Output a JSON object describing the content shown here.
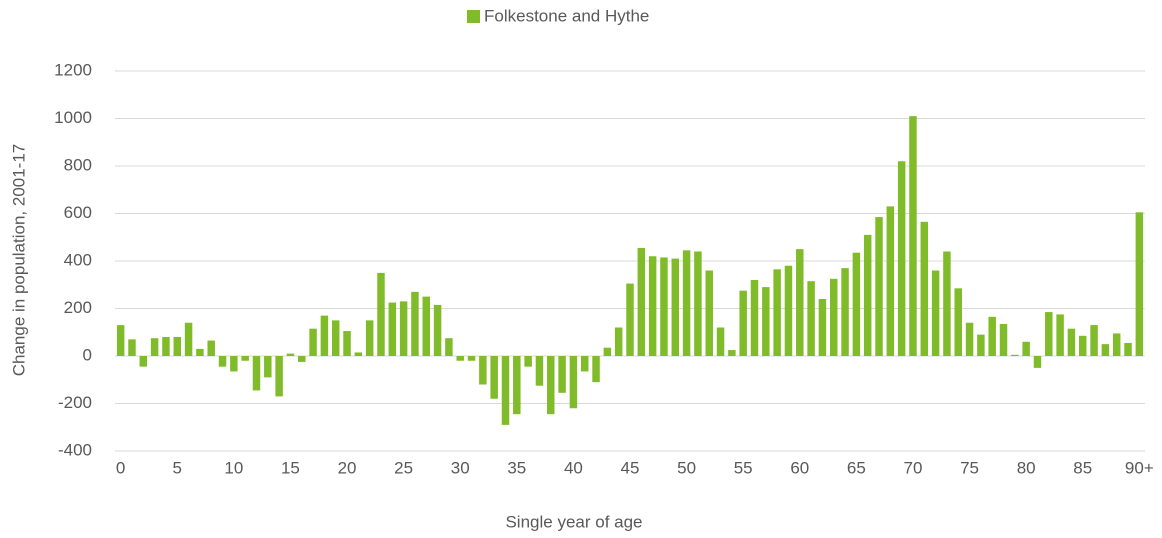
{
  "chart_data": {
    "type": "bar",
    "x_label": "Single year of age",
    "y_label": "Change in population, 2001-17",
    "categories": [
      "0",
      null,
      null,
      null,
      null,
      "5",
      null,
      null,
      null,
      null,
      "10",
      null,
      null,
      null,
      null,
      "15",
      null,
      null,
      null,
      null,
      "20",
      null,
      null,
      null,
      null,
      "25",
      null,
      null,
      null,
      null,
      "30",
      null,
      null,
      null,
      null,
      "35",
      null,
      null,
      null,
      null,
      "40",
      null,
      null,
      null,
      null,
      "45",
      null,
      null,
      null,
      null,
      "50",
      null,
      null,
      null,
      null,
      "55",
      null,
      null,
      null,
      null,
      "60",
      null,
      null,
      null,
      null,
      "65",
      null,
      null,
      null,
      null,
      "70",
      null,
      null,
      null,
      null,
      "75",
      null,
      null,
      null,
      null,
      "80",
      null,
      null,
      null,
      null,
      "85",
      null,
      null,
      null,
      null,
      "90+"
    ],
    "series": [
      {
        "name": "Folkestone and Hythe",
        "color": "#80bb2a",
        "values": [
          130,
          70,
          -45,
          75,
          80,
          80,
          140,
          30,
          65,
          -45,
          -65,
          -20,
          -145,
          -90,
          -170,
          10,
          -25,
          115,
          170,
          150,
          105,
          15,
          150,
          350,
          225,
          230,
          270,
          250,
          215,
          75,
          -20,
          -20,
          -120,
          -180,
          -290,
          -245,
          -45,
          -125,
          -245,
          -155,
          -220,
          -65,
          -110,
          35,
          120,
          305,
          455,
          420,
          415,
          410,
          445,
          440,
          360,
          120,
          25,
          275,
          320,
          290,
          365,
          380,
          450,
          315,
          240,
          325,
          370,
          435,
          510,
          585,
          630,
          820,
          1010,
          565,
          360,
          440,
          285,
          140,
          90,
          165,
          135,
          5,
          60,
          -50,
          185,
          175,
          115,
          85,
          130,
          50,
          95,
          55,
          605
        ]
      }
    ],
    "ylim": [
      -400,
      1200
    ],
    "yticks": [
      -400,
      -200,
      0,
      200,
      400,
      600,
      800,
      1000,
      1200
    ],
    "grid": true,
    "legend": "top"
  }
}
